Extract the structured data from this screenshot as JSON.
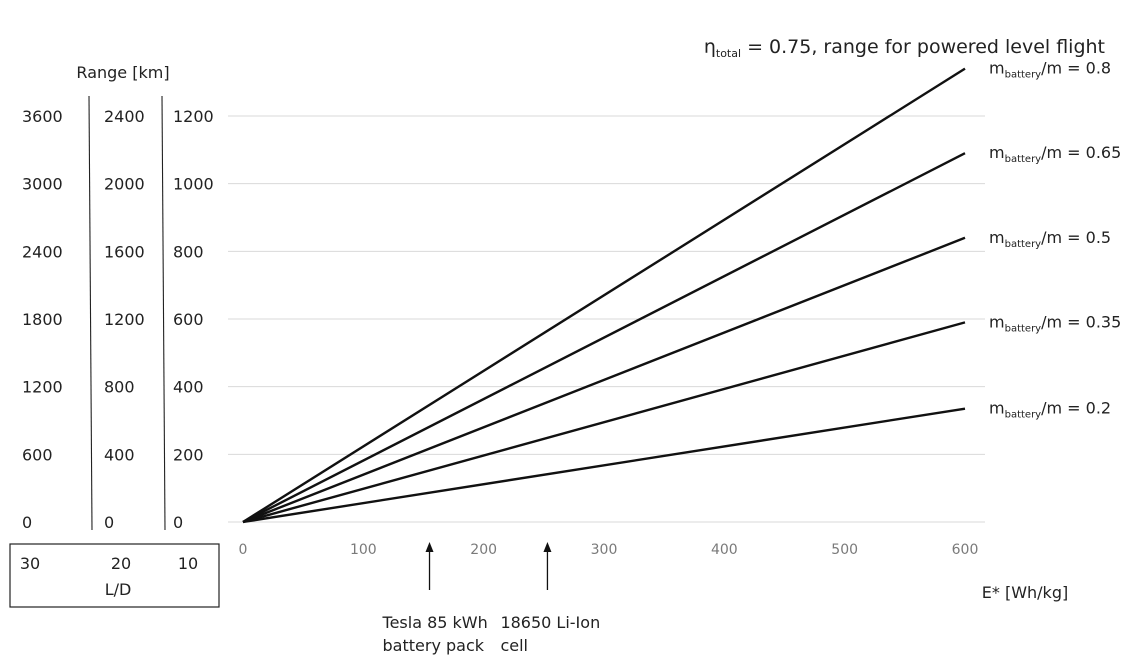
{
  "chart_data": {
    "type": "line",
    "title": {
      "eta_symbol": "η",
      "eta_subscript": "total",
      "text": " = 0.75, range for powered level flight"
    },
    "xlabel": "E* [Wh/kg]",
    "ylabel": "Range [km]",
    "xlim": [
      0,
      600
    ],
    "ylim": [
      0,
      1200
    ],
    "x_ticks": [
      "0",
      "100",
      "200",
      "300",
      "400",
      "500",
      "600"
    ],
    "y_scales": [
      {
        "ld": "30",
        "ticks": [
          "0",
          "600",
          "1200",
          "1800",
          "2400",
          "3000",
          "3600"
        ]
      },
      {
        "ld": "20",
        "ticks": [
          "0",
          "400",
          "800",
          "1200",
          "1600",
          "2000",
          "2400"
        ]
      },
      {
        "ld": "10",
        "ticks": [
          "0",
          "200",
          "400",
          "600",
          "800",
          "1000",
          "1200"
        ]
      }
    ],
    "ld_label": "L/D",
    "grid": true,
    "series": [
      {
        "name_main": "m",
        "name_sub": "battery",
        "name_rest": "/m = 0.8",
        "x": [
          0,
          600
        ],
        "y": [
          0,
          1340
        ]
      },
      {
        "name_main": "m",
        "name_sub": "battery",
        "name_rest": "/m = 0.65",
        "x": [
          0,
          600
        ],
        "y": [
          0,
          1090
        ]
      },
      {
        "name_main": "m",
        "name_sub": "battery",
        "name_rest": "/m = 0.5",
        "x": [
          0,
          600
        ],
        "y": [
          0,
          840
        ]
      },
      {
        "name_main": "m",
        "name_sub": "battery",
        "name_rest": "/m = 0.35",
        "x": [
          0,
          600
        ],
        "y": [
          0,
          590
        ]
      },
      {
        "name_main": "m",
        "name_sub": "battery",
        "name_rest": "/m = 0.2",
        "x": [
          0,
          600
        ],
        "y": [
          0,
          335
        ]
      }
    ],
    "annotations": [
      {
        "x": 155,
        "lines": [
          "Tesla 85 kWh",
          "battery pack"
        ]
      },
      {
        "x": 253,
        "lines": [
          "18650 Li-Ion",
          "cell"
        ]
      }
    ]
  }
}
